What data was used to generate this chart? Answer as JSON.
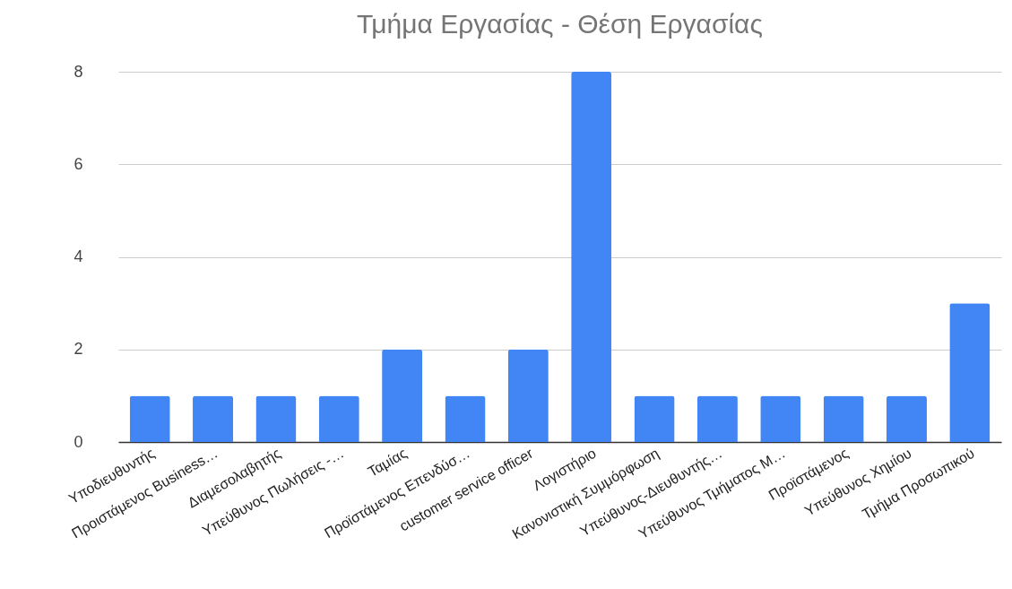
{
  "chart_data": {
    "type": "bar",
    "title": "Τμήμα Εργασίας - Θέση Εργασίας",
    "categories": [
      "Υποδιευθυντής",
      "Προιστάμενος Business…",
      "Διαμεσολαβητής",
      "Υπεύθυνος Πωλήσεις -…",
      "Ταμίας",
      "Προϊστάμενος Επενδύσ…",
      "customer service officer",
      "Λογιστήριο",
      "Κανονιστική Συμμόρφωση",
      "Υπεύθυνος-Διευθυντής…",
      "Υπεύθυνος Τμήματος Μ…",
      "Προϊστάμενος",
      "Υπεύθυνος Χημίου",
      "Τμήμα Προσωπικού"
    ],
    "values": [
      1,
      1,
      1,
      1,
      2,
      1,
      2,
      8,
      1,
      1,
      1,
      1,
      1,
      3
    ],
    "color": "#4285f4",
    "ylim": [
      0,
      8
    ],
    "yticks": [
      0,
      2,
      4,
      6,
      8
    ],
    "grid": "y"
  }
}
